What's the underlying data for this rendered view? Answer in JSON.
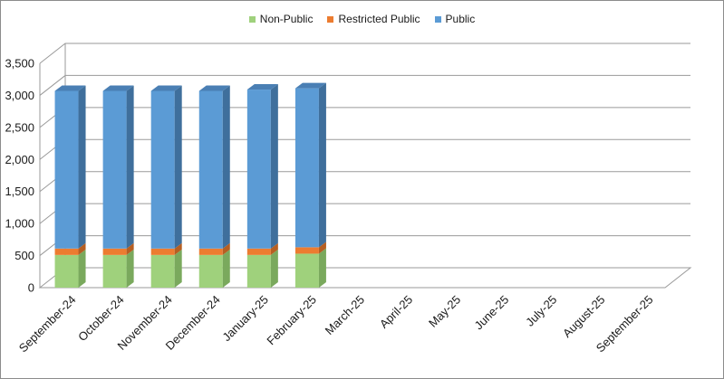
{
  "chart_data": {
    "type": "bar",
    "stacked": true,
    "three_d": true,
    "categories": [
      "September-24",
      "October-24",
      "November-24",
      "December-24",
      "January-25",
      "February-25",
      "March-25",
      "April-25",
      "May-25",
      "June-25",
      "July-25",
      "August-25",
      "September-25"
    ],
    "series": [
      {
        "name": "Non-Public",
        "color": "#9fd17c",
        "side_color": "#7aa95d",
        "top_color": "#b3dc96",
        "values": [
          510,
          510,
          510,
          510,
          510,
          530,
          null,
          null,
          null,
          null,
          null,
          null,
          null
        ]
      },
      {
        "name": "Restricted Public",
        "color": "#ec7c30",
        "side_color": "#b65f22",
        "top_color": "#f09a5c",
        "values": [
          100,
          100,
          100,
          100,
          100,
          100,
          null,
          null,
          null,
          null,
          null,
          null,
          null
        ]
      },
      {
        "name": "Public",
        "color": "#5b9bd5",
        "side_color": "#3f6f9c",
        "top_color": "#4a7fb4",
        "values": [
          2460,
          2460,
          2460,
          2460,
          2480,
          2480,
          null,
          null,
          null,
          null,
          null,
          null,
          null
        ]
      }
    ],
    "yticks": [
      "0",
      "500",
      "1,000",
      "1,500",
      "2,000",
      "2,500",
      "3,000",
      "3,500"
    ],
    "ylim": [
      0,
      3500
    ],
    "legend_position": "top",
    "grid": true,
    "colors": {
      "grid": "#9a9a9a",
      "axis_text": "#1a1a1a",
      "frame": "#8c8c8c"
    }
  }
}
